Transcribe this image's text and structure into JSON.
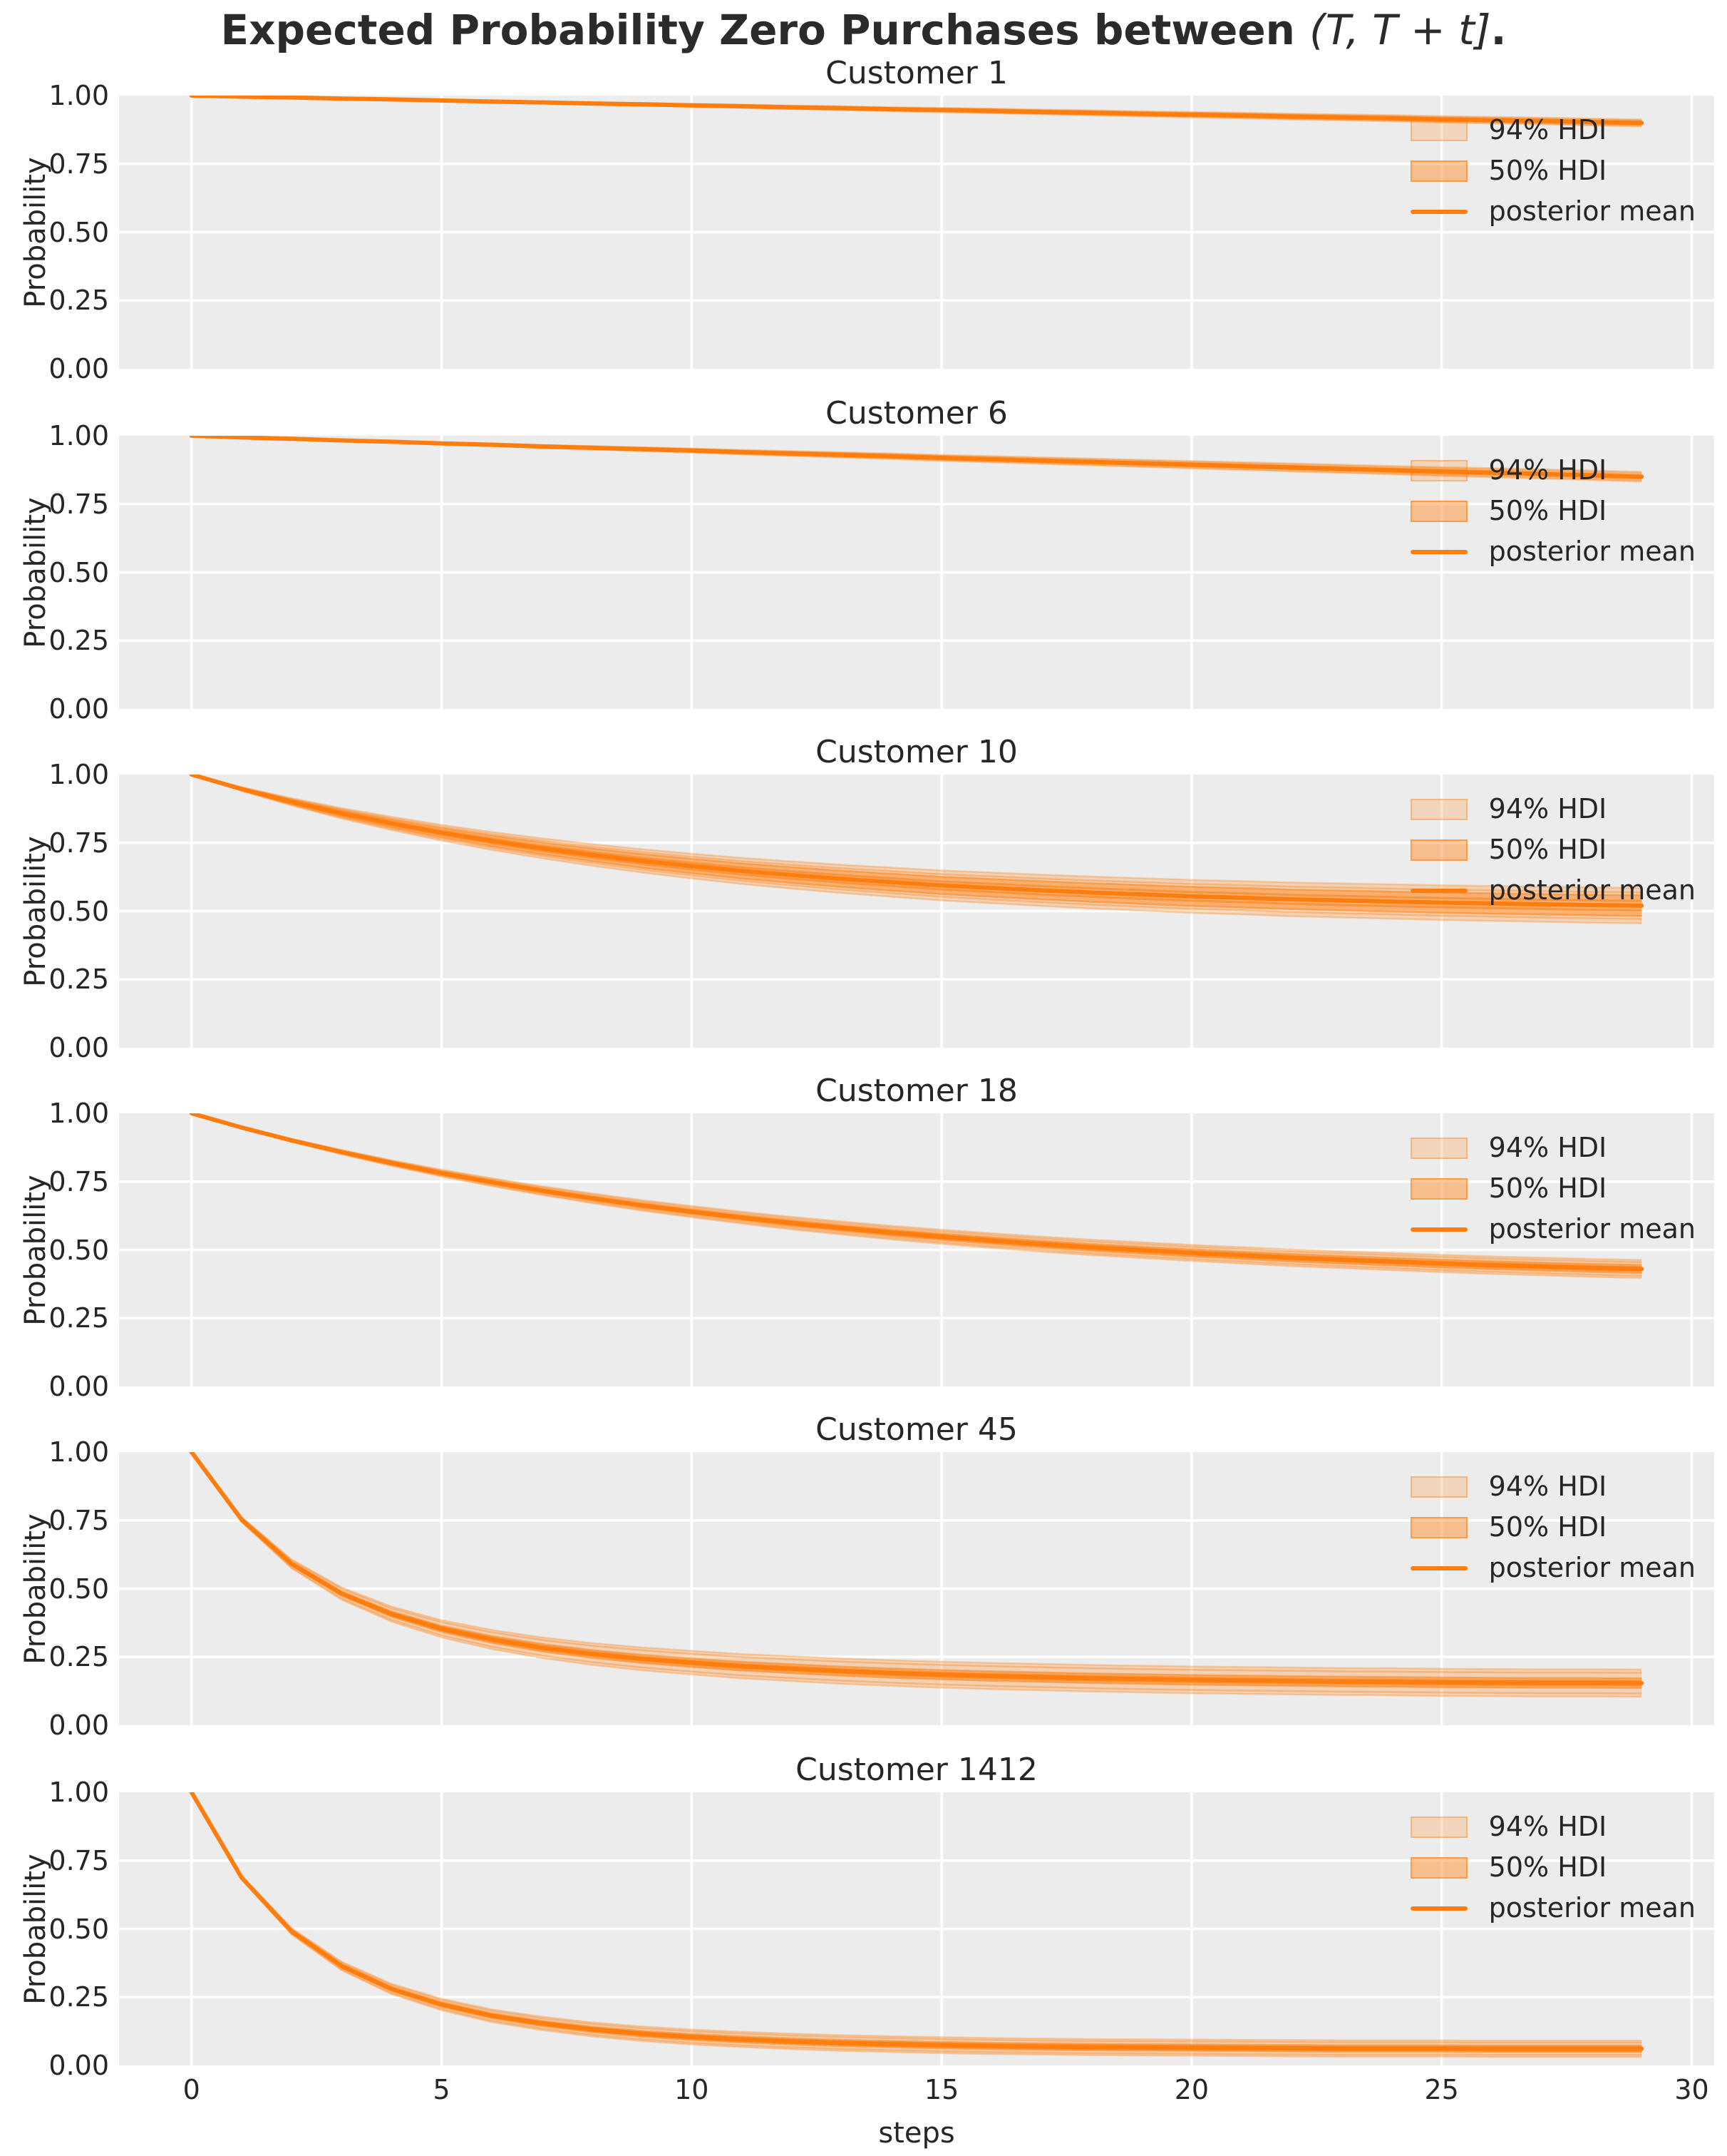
{
  "suptitle": {
    "prefix": "Expected Probability Zero Purchases between ",
    "math": "(T, T + t]",
    "suffix": "."
  },
  "axes": {
    "ylabel": "Probability",
    "xlabel": "steps",
    "yticks": [
      "1.00",
      "0.75",
      "0.50",
      "0.25",
      "0.00"
    ],
    "ytick_values": [
      1.0,
      0.75,
      0.5,
      0.25,
      0.0
    ],
    "xticks": [
      "0",
      "5",
      "10",
      "15",
      "20",
      "25",
      "30"
    ],
    "xtick_values": [
      0,
      5,
      10,
      15,
      20,
      25,
      30
    ],
    "xlim": [
      -1.45,
      30.45
    ],
    "ylim": [
      0.0,
      1.0
    ],
    "grid": "white gridlines on light gray background"
  },
  "legend": {
    "hdi94": "94% HDI",
    "hdi50": "50% HDI",
    "mean": "posterior mean"
  },
  "colors": {
    "mean_line": "#fd7e0e",
    "hdi94_fill": "rgba(255,127,14,0.25)",
    "hdi50_fill": "rgba(255,127,14,0.42)",
    "hdi94_edge": "rgba(255,127,14,0.30)",
    "hdi50_edge": "rgba(255,127,14,0.50)",
    "plot_bg": "#ececec",
    "grid": "#ffffff",
    "text": "#262626"
  },
  "chart_data": [
    {
      "type": "line",
      "title": "Customer 1",
      "x": [
        0,
        1,
        2,
        3,
        4,
        5,
        6,
        7,
        8,
        9,
        10,
        11,
        12,
        13,
        14,
        15,
        16,
        17,
        18,
        19,
        20,
        21,
        22,
        23,
        24,
        25,
        26,
        27,
        28,
        29
      ],
      "mean": [
        1.0,
        0.996,
        0.993,
        0.989,
        0.986,
        0.982,
        0.978,
        0.975,
        0.971,
        0.968,
        0.964,
        0.961,
        0.957,
        0.954,
        0.95,
        0.947,
        0.944,
        0.94,
        0.937,
        0.933,
        0.93,
        0.927,
        0.923,
        0.92,
        0.917,
        0.913,
        0.91,
        0.907,
        0.903,
        0.9
      ],
      "hdi94_halfwidth_end": 0.013,
      "hdi50_halfwidth_end": 0.005,
      "band_tau": 40,
      "hdi94_at_step29": [
        0.887,
        0.913
      ],
      "hdi50_at_step29": [
        0.895,
        0.905
      ]
    },
    {
      "type": "line",
      "title": "Customer 6",
      "x": [
        0,
        1,
        2,
        3,
        4,
        5,
        6,
        7,
        8,
        9,
        10,
        11,
        12,
        13,
        14,
        15,
        16,
        17,
        18,
        19,
        20,
        21,
        22,
        23,
        24,
        25,
        26,
        27,
        28,
        29
      ],
      "mean": [
        1.0,
        0.994,
        0.989,
        0.983,
        0.978,
        0.972,
        0.967,
        0.961,
        0.956,
        0.951,
        0.946,
        0.94,
        0.935,
        0.93,
        0.925,
        0.919,
        0.914,
        0.909,
        0.904,
        0.899,
        0.894,
        0.889,
        0.884,
        0.879,
        0.874,
        0.869,
        0.865,
        0.86,
        0.855,
        0.85
      ],
      "hdi94_halfwidth_end": 0.018,
      "hdi50_halfwidth_end": 0.007,
      "band_tau": 40,
      "hdi94_at_step29": [
        0.832,
        0.868
      ],
      "hdi50_at_step29": [
        0.843,
        0.857
      ]
    },
    {
      "type": "line",
      "title": "Customer 10",
      "x": [
        0,
        1,
        2,
        3,
        4,
        5,
        6,
        7,
        8,
        9,
        10,
        11,
        12,
        13,
        14,
        15,
        16,
        17,
        18,
        19,
        20,
        21,
        22,
        23,
        24,
        25,
        26,
        27,
        28,
        29
      ],
      "mean": [
        1.0,
        0.947,
        0.9,
        0.858,
        0.821,
        0.787,
        0.757,
        0.73,
        0.706,
        0.684,
        0.665,
        0.647,
        0.632,
        0.618,
        0.606,
        0.594,
        0.585,
        0.576,
        0.568,
        0.561,
        0.554,
        0.549,
        0.543,
        0.539,
        0.535,
        0.531,
        0.528,
        0.525,
        0.522,
        0.52
      ],
      "hdi94_halfwidth_end": 0.065,
      "hdi50_halfwidth_end": 0.038,
      "band_tau": 9,
      "hdi94_at_step29": [
        0.455,
        0.585
      ],
      "hdi50_at_step29": [
        0.482,
        0.558
      ]
    },
    {
      "type": "line",
      "title": "Customer 18",
      "x": [
        0,
        1,
        2,
        3,
        4,
        5,
        6,
        7,
        8,
        9,
        10,
        11,
        12,
        13,
        14,
        15,
        16,
        17,
        18,
        19,
        20,
        21,
        22,
        23,
        24,
        25,
        26,
        27,
        28,
        29
      ],
      "mean": [
        1.0,
        0.948,
        0.901,
        0.858,
        0.818,
        0.781,
        0.748,
        0.717,
        0.689,
        0.663,
        0.64,
        0.618,
        0.598,
        0.58,
        0.563,
        0.548,
        0.534,
        0.521,
        0.509,
        0.499,
        0.489,
        0.48,
        0.471,
        0.464,
        0.457,
        0.45,
        0.444,
        0.439,
        0.434,
        0.43
      ],
      "hdi94_halfwidth_end": 0.033,
      "hdi50_halfwidth_end": 0.015,
      "band_tau": 11.5,
      "hdi94_at_step29": [
        0.397,
        0.463
      ],
      "hdi50_at_step29": [
        0.415,
        0.445
      ]
    },
    {
      "type": "line",
      "title": "Customer 45",
      "x": [
        0,
        1,
        2,
        3,
        4,
        5,
        6,
        7,
        8,
        9,
        10,
        11,
        12,
        13,
        14,
        15,
        16,
        17,
        18,
        19,
        20,
        21,
        22,
        23,
        24,
        25,
        26,
        27,
        28,
        29
      ],
      "mean": [
        1.0,
        0.753,
        0.591,
        0.482,
        0.407,
        0.353,
        0.314,
        0.284,
        0.261,
        0.243,
        0.229,
        0.216,
        0.207,
        0.198,
        0.191,
        0.185,
        0.18,
        0.176,
        0.172,
        0.169,
        0.166,
        0.164,
        0.162,
        0.16,
        0.159,
        0.157,
        0.156,
        0.155,
        0.155,
        0.154
      ],
      "hdi94_halfwidth_end": 0.05,
      "hdi50_halfwidth_end": 0.018,
      "band_tau": 5,
      "hdi94_at_step29": [
        0.104,
        0.204
      ],
      "hdi50_at_step29": [
        0.136,
        0.172
      ]
    },
    {
      "type": "line",
      "title": "Customer 1412",
      "x": [
        0,
        1,
        2,
        3,
        4,
        5,
        6,
        7,
        8,
        9,
        10,
        11,
        12,
        13,
        14,
        15,
        16,
        17,
        18,
        19,
        20,
        21,
        22,
        23,
        24,
        25,
        26,
        27,
        28,
        29
      ],
      "mean": [
        1.0,
        0.688,
        0.491,
        0.364,
        0.28,
        0.223,
        0.182,
        0.154,
        0.132,
        0.116,
        0.104,
        0.095,
        0.088,
        0.082,
        0.078,
        0.074,
        0.071,
        0.069,
        0.067,
        0.066,
        0.065,
        0.064,
        0.063,
        0.062,
        0.062,
        0.062,
        0.061,
        0.061,
        0.061,
        0.061
      ],
      "hdi94_halfwidth_end": 0.03,
      "hdi50_halfwidth_end": 0.012,
      "band_tau": 4,
      "hdi94_at_step29": [
        0.031,
        0.091
      ],
      "hdi50_at_step29": [
        0.049,
        0.073
      ]
    }
  ]
}
